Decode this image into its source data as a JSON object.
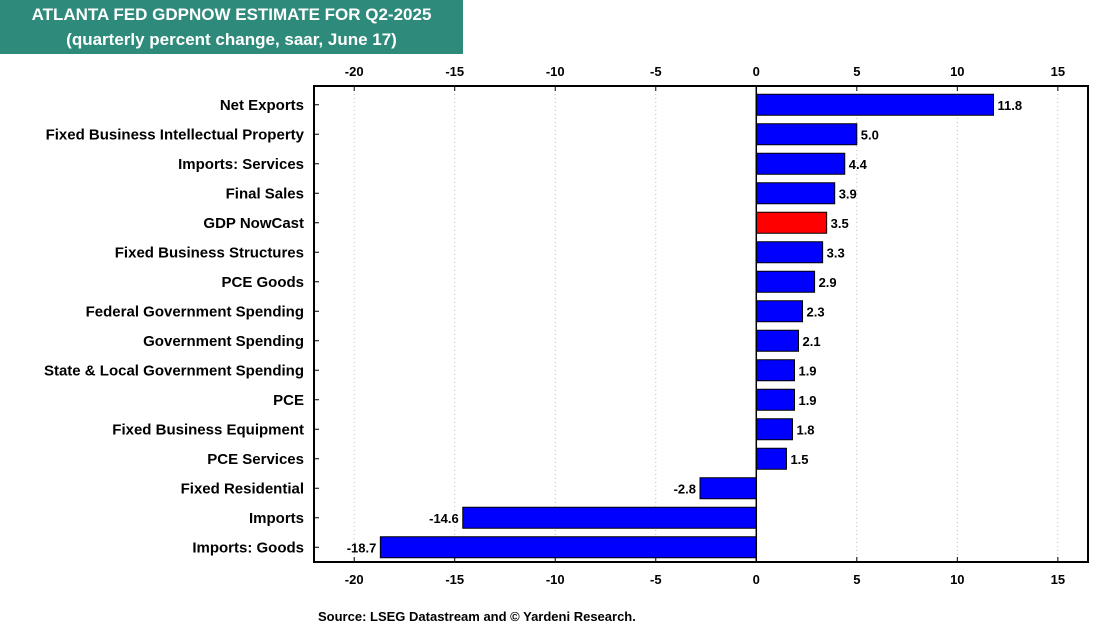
{
  "header": {
    "title": "ATLANTA FED GDPNOW ESTIMATE FOR Q2-2025",
    "subtitle": "(quarterly percent change, saar, June 17)"
  },
  "source": "Source: LSEG Datastream and © Yardeni Research.",
  "colors": {
    "title_bg": "#2e8a7a",
    "bar": "#0000ff",
    "highlight_bar": "#ff0000",
    "grid": "#bdbdbd"
  },
  "chart_data": {
    "type": "bar",
    "orientation": "horizontal",
    "title": "ATLANTA FED GDPNOW ESTIMATE FOR Q2-2025",
    "subtitle": "(quarterly percent change, saar, June 17)",
    "xlim": [
      -22,
      16.5
    ],
    "ticks": [
      -20,
      -15,
      -10,
      -5,
      0,
      5,
      10,
      15
    ],
    "grid": "vertical dotted",
    "categories": [
      "Net Exports",
      "Fixed Business Intellectual Property",
      "Imports: Services",
      "Final Sales",
      "GDP NowCast",
      "Fixed Business Structures",
      "PCE Goods",
      "Federal Government Spending",
      "Government Spending",
      "State & Local Government Spending",
      "PCE",
      "Fixed Business Equipment",
      "PCE Services",
      "Fixed Residential",
      "Imports",
      "Imports: Goods"
    ],
    "values": [
      11.8,
      5.0,
      4.4,
      3.9,
      3.5,
      3.3,
      2.9,
      2.3,
      2.1,
      1.9,
      1.9,
      1.8,
      1.5,
      -2.8,
      -14.6,
      -18.7
    ],
    "labels": [
      "11.8",
      "5.0",
      "4.4",
      "3.9",
      "3.5",
      "3.3",
      "2.9",
      "2.3",
      "2.1",
      "1.9",
      "1.9",
      "1.8",
      "1.5",
      "-2.8",
      "-14.6",
      "-18.7"
    ],
    "highlight": "GDP NowCast"
  }
}
